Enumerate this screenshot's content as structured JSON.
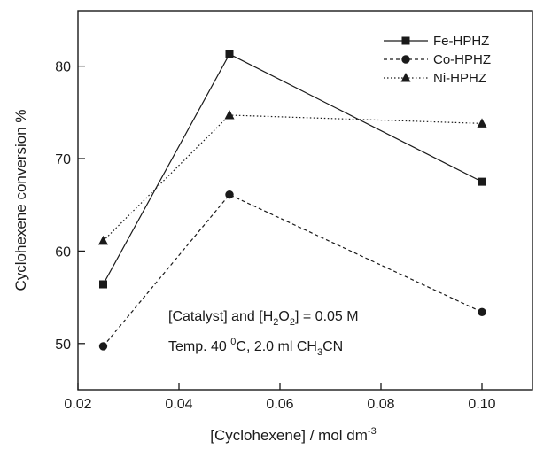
{
  "chart_data": {
    "type": "line",
    "xlabel": {
      "main": "[Cyclohexene] / mol dm",
      "sup": "-3"
    },
    "ylabel": "Cyclohexene conversion %",
    "xlim": [
      0.02,
      0.11
    ],
    "ylim": [
      45,
      86
    ],
    "x_ticks": [
      "0.02",
      "0.04",
      "0.06",
      "0.08",
      "0.10"
    ],
    "y_ticks": [
      "50",
      "60",
      "70",
      "80"
    ],
    "grid": false,
    "legend_position": "top-right",
    "x": [
      0.025,
      0.05,
      0.1
    ],
    "series": [
      {
        "name": "Fe-HPHZ",
        "values": [
          56.4,
          81.3,
          67.5
        ],
        "marker": "square",
        "line": "solid"
      },
      {
        "name": "Co-HPHZ",
        "values": [
          49.7,
          66.1,
          53.4
        ],
        "marker": "circle",
        "line": "dashed"
      },
      {
        "name": "Ni-HPHZ",
        "values": [
          61.1,
          74.7,
          73.8
        ],
        "marker": "triangle",
        "line": "dotted"
      }
    ],
    "annotations": [
      {
        "id": "line1",
        "parts": [
          {
            "t": "[Catalyst] and [H"
          },
          {
            "t": "2",
            "sub": true
          },
          {
            "t": "O"
          },
          {
            "t": "2",
            "sub": true
          },
          {
            "t": "] = 0.05 M"
          }
        ]
      },
      {
        "id": "line2",
        "parts": [
          {
            "t": "Temp. 40 "
          },
          {
            "t": "0",
            "sup": true
          },
          {
            "t": "C, 2.0 ml CH"
          },
          {
            "t": "3",
            "sub": true
          },
          {
            "t": "CN"
          }
        ]
      }
    ]
  },
  "colors": {
    "ink": "#1a1a1a",
    "background": "#ffffff"
  }
}
